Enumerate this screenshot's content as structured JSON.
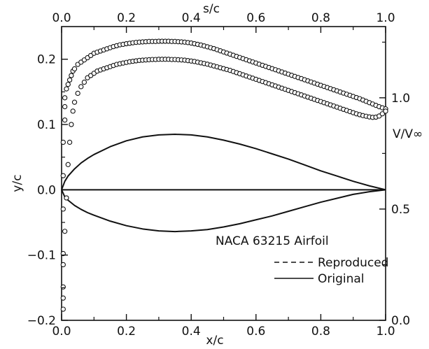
{
  "chart_data": {
    "type": "line",
    "title": "",
    "axes": {
      "bottom": {
        "label": "x/c",
        "range": [
          0.0,
          1.0
        ],
        "ticks": [
          "0.0",
          "0.2",
          "0.4",
          "0.6",
          "0.8",
          "1.0"
        ]
      },
      "top": {
        "label": "s/c",
        "range": [
          0.0,
          1.0
        ],
        "ticks": [
          "0.0",
          "0.2",
          "0.4",
          "0.6",
          "0.8",
          "1.0"
        ]
      },
      "left": {
        "label": "y/c",
        "range": [
          -0.2,
          0.25
        ],
        "ticks": [
          "-0.2",
          "-0.1",
          "0.0",
          "0.1",
          "0.2"
        ]
      },
      "right": {
        "label": "V/V∞",
        "range": [
          0.0,
          1.32
        ],
        "ticks": [
          "0.0",
          "0.5",
          "1.0"
        ]
      }
    },
    "legend": {
      "placement": "bottom-right",
      "title": "NACA 63215 Airfoil",
      "entries": [
        {
          "label": "Reproduced",
          "style": "dashed"
        },
        {
          "label": "Original",
          "style": "solid"
        }
      ]
    },
    "series": [
      {
        "label": "Airfoil upper surface",
        "axis": "left",
        "x": [
          0.0,
          0.01,
          0.02,
          0.04,
          0.06,
          0.08,
          0.1,
          0.15,
          0.2,
          0.25,
          0.3,
          0.35,
          0.4,
          0.45,
          0.5,
          0.55,
          0.6,
          0.65,
          0.7,
          0.75,
          0.8,
          0.85,
          0.9,
          0.95,
          1.0
        ],
        "y": [
          0.0,
          0.013,
          0.021,
          0.032,
          0.041,
          0.048,
          0.054,
          0.066,
          0.075,
          0.081,
          0.084,
          0.085,
          0.084,
          0.081,
          0.076,
          0.07,
          0.063,
          0.055,
          0.047,
          0.038,
          0.029,
          0.021,
          0.013,
          0.006,
          0.0
        ]
      },
      {
        "label": "Airfoil lower surface",
        "axis": "left",
        "x": [
          0.0,
          0.01,
          0.02,
          0.04,
          0.06,
          0.08,
          0.1,
          0.15,
          0.2,
          0.25,
          0.3,
          0.35,
          0.4,
          0.45,
          0.5,
          0.55,
          0.6,
          0.65,
          0.7,
          0.75,
          0.8,
          0.85,
          0.9,
          0.95,
          1.0
        ],
        "y": [
          0.0,
          -0.011,
          -0.016,
          -0.024,
          -0.03,
          -0.035,
          -0.039,
          -0.048,
          -0.055,
          -0.06,
          -0.063,
          -0.064,
          -0.063,
          -0.061,
          -0.057,
          -0.052,
          -0.046,
          -0.04,
          -0.033,
          -0.026,
          -0.019,
          -0.013,
          -0.007,
          -0.003,
          0.0
        ]
      },
      {
        "label": "Chord line",
        "axis": "left",
        "x": [
          0.0,
          1.0
        ],
        "y": [
          0.0,
          0.0
        ]
      },
      {
        "label": "Upper surface velocity",
        "axis": "right",
        "marker": "circle",
        "x": [
          0.005,
          0.005,
          0.005,
          0.005,
          0.005,
          0.01,
          0.01,
          0.01,
          0.015,
          0.02,
          0.025,
          0.03,
          0.035,
          0.04,
          0.05,
          0.06,
          0.07,
          0.08,
          0.09,
          0.1,
          0.11,
          0.12,
          0.13,
          0.14,
          0.15,
          0.16,
          0.17,
          0.18,
          0.19,
          0.2,
          0.21,
          0.22,
          0.23,
          0.24,
          0.25,
          0.26,
          0.27,
          0.28,
          0.29,
          0.3,
          0.31,
          0.32,
          0.33,
          0.34,
          0.35,
          0.36,
          0.37,
          0.38,
          0.39,
          0.4,
          0.41,
          0.42,
          0.43,
          0.44,
          0.45,
          0.46,
          0.47,
          0.48,
          0.49,
          0.5,
          0.51,
          0.52,
          0.53,
          0.54,
          0.55,
          0.56,
          0.57,
          0.58,
          0.59,
          0.6,
          0.61,
          0.62,
          0.63,
          0.64,
          0.65,
          0.66,
          0.67,
          0.68,
          0.69,
          0.7,
          0.71,
          0.72,
          0.73,
          0.74,
          0.75,
          0.76,
          0.77,
          0.78,
          0.79,
          0.8,
          0.81,
          0.82,
          0.83,
          0.84,
          0.85,
          0.86,
          0.87,
          0.88,
          0.89,
          0.9,
          0.91,
          0.92,
          0.93,
          0.94,
          0.95,
          0.96,
          0.97,
          0.98,
          0.99,
          1.0
        ],
        "y": [
          0.1,
          0.3,
          0.5,
          0.65,
          0.8,
          0.9,
          0.96,
          1.0,
          1.04,
          1.06,
          1.08,
          1.1,
          1.12,
          1.13,
          1.15,
          1.16,
          1.17,
          1.18,
          1.19,
          1.2,
          1.205,
          1.21,
          1.215,
          1.22,
          1.225,
          1.23,
          1.234,
          1.238,
          1.24,
          1.243,
          1.245,
          1.247,
          1.249,
          1.25,
          1.251,
          1.252,
          1.253,
          1.253,
          1.253,
          1.254,
          1.254,
          1.254,
          1.254,
          1.253,
          1.253,
          1.252,
          1.251,
          1.25,
          1.248,
          1.246,
          1.243,
          1.24,
          1.237,
          1.233,
          1.229,
          1.225,
          1.221,
          1.216,
          1.211,
          1.206,
          1.201,
          1.196,
          1.191,
          1.186,
          1.181,
          1.176,
          1.171,
          1.166,
          1.161,
          1.156,
          1.151,
          1.146,
          1.141,
          1.136,
          1.131,
          1.126,
          1.121,
          1.116,
          1.111,
          1.106,
          1.101,
          1.096,
          1.091,
          1.086,
          1.081,
          1.076,
          1.071,
          1.066,
          1.061,
          1.056,
          1.051,
          1.046,
          1.041,
          1.036,
          1.031,
          1.026,
          1.021,
          1.016,
          1.011,
          1.006,
          1.001,
          0.996,
          0.99,
          0.984,
          0.978,
          0.972,
          0.966,
          0.96,
          0.955,
          0.95
        ]
      },
      {
        "label": "Lower surface velocity",
        "axis": "right",
        "marker": "circle",
        "x": [
          0.005,
          0.005,
          0.005,
          0.01,
          0.015,
          0.02,
          0.025,
          0.03,
          0.035,
          0.04,
          0.05,
          0.06,
          0.07,
          0.08,
          0.09,
          0.1,
          0.11,
          0.12,
          0.13,
          0.14,
          0.15,
          0.16,
          0.17,
          0.18,
          0.19,
          0.2,
          0.21,
          0.22,
          0.23,
          0.24,
          0.25,
          0.26,
          0.27,
          0.28,
          0.29,
          0.3,
          0.31,
          0.32,
          0.33,
          0.34,
          0.35,
          0.36,
          0.37,
          0.38,
          0.39,
          0.4,
          0.41,
          0.42,
          0.43,
          0.44,
          0.45,
          0.46,
          0.47,
          0.48,
          0.49,
          0.5,
          0.51,
          0.52,
          0.53,
          0.54,
          0.55,
          0.56,
          0.57,
          0.58,
          0.59,
          0.6,
          0.61,
          0.62,
          0.63,
          0.64,
          0.65,
          0.66,
          0.67,
          0.68,
          0.69,
          0.7,
          0.71,
          0.72,
          0.73,
          0.74,
          0.75,
          0.76,
          0.77,
          0.78,
          0.79,
          0.8,
          0.81,
          0.82,
          0.83,
          0.84,
          0.85,
          0.86,
          0.87,
          0.88,
          0.89,
          0.9,
          0.91,
          0.92,
          0.93,
          0.94,
          0.95,
          0.96,
          0.97,
          0.98,
          0.99,
          1.0
        ],
        "y": [
          0.05,
          0.15,
          0.25,
          0.4,
          0.55,
          0.7,
          0.8,
          0.88,
          0.94,
          0.98,
          1.02,
          1.05,
          1.07,
          1.09,
          1.1,
          1.11,
          1.12,
          1.125,
          1.13,
          1.135,
          1.14,
          1.145,
          1.15,
          1.153,
          1.156,
          1.159,
          1.162,
          1.164,
          1.166,
          1.168,
          1.169,
          1.17,
          1.171,
          1.172,
          1.172,
          1.173,
          1.173,
          1.173,
          1.173,
          1.172,
          1.172,
          1.171,
          1.17,
          1.169,
          1.167,
          1.165,
          1.163,
          1.16,
          1.157,
          1.154,
          1.151,
          1.147,
          1.143,
          1.139,
          1.135,
          1.131,
          1.127,
          1.123,
          1.118,
          1.113,
          1.108,
          1.103,
          1.098,
          1.093,
          1.088,
          1.083,
          1.078,
          1.073,
          1.068,
          1.063,
          1.058,
          1.053,
          1.048,
          1.043,
          1.038,
          1.033,
          1.028,
          1.023,
          1.018,
          1.013,
          1.008,
          1.003,
          0.998,
          0.993,
          0.988,
          0.983,
          0.978,
          0.973,
          0.968,
          0.963,
          0.958,
          0.953,
          0.948,
          0.943,
          0.938,
          0.933,
          0.928,
          0.924,
          0.92,
          0.917,
          0.914,
          0.912,
          0.913,
          0.918,
          0.928,
          0.94
        ]
      }
    ]
  }
}
